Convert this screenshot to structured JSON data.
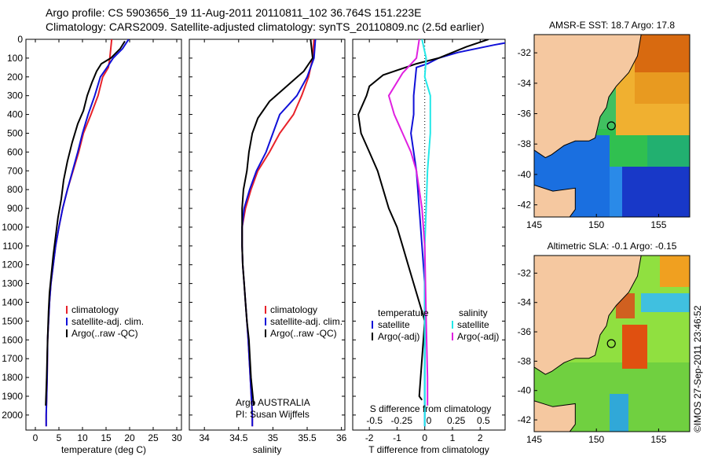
{
  "title_line1": "Argo profile: CS 5903656_19 11-Aug-2011 20110811_102 36.764S 151.223E",
  "title_line2": "Climatology: CARS2009. Satellite-adjusted climatology: synTS_20110809.nc (2.5d earlier)",
  "colors": {
    "climatology": "#e8222a",
    "satellite": "#1010d8",
    "argo": "#000000",
    "salinity_sat": "#22e8e8",
    "salinity_argo": "#e020e0",
    "land": "#f5c8a0",
    "coast": "#000000"
  },
  "chart_data": [
    {
      "type": "line",
      "panel": "temperature",
      "xlabel": "temperature (deg C)",
      "x_ticks": [
        "0",
        "5",
        "10",
        "15",
        "20",
        "25",
        "30"
      ],
      "xlim": [
        -2,
        31
      ],
      "ylim": [
        2080,
        0
      ],
      "y_ticks": [
        "0",
        "100",
        "200",
        "300",
        "400",
        "500",
        "600",
        "700",
        "800",
        "900",
        "1000",
        "1100",
        "1200",
        "1300",
        "1400",
        "1500",
        "1600",
        "1700",
        "1800",
        "1900",
        "2000"
      ],
      "legend": [
        "climatology",
        "satellite-adj. clim.",
        "Argo(..raw -QC)"
      ],
      "series": [
        {
          "name": "climatology",
          "color_key": "climatology",
          "points": [
            [
              16.2,
              0
            ],
            [
              16.0,
              50
            ],
            [
              15.8,
              100
            ],
            [
              15.5,
              150
            ],
            [
              14.3,
              200
            ],
            [
              13.3,
              300
            ],
            [
              11.8,
              400
            ],
            [
              10.2,
              500
            ],
            [
              9.2,
              600
            ],
            [
              8.0,
              700
            ],
            [
              6.8,
              800
            ],
            [
              5.8,
              900
            ],
            [
              5.0,
              1000
            ],
            [
              4.3,
              1100
            ],
            [
              3.8,
              1200
            ],
            [
              3.3,
              1300
            ],
            [
              3.0,
              1400
            ],
            [
              2.8,
              1500
            ],
            [
              2.6,
              1600
            ],
            [
              2.5,
              1800
            ],
            [
              2.3,
              2000
            ],
            [
              2.3,
              2060
            ]
          ]
        },
        {
          "name": "satellite-adj. clim.",
          "color_key": "satellite",
          "points": [
            [
              19.8,
              0
            ],
            [
              18.5,
              50
            ],
            [
              16.5,
              100
            ],
            [
              15.2,
              150
            ],
            [
              13.8,
              200
            ],
            [
              12.6,
              300
            ],
            [
              11.2,
              400
            ],
            [
              10.0,
              500
            ],
            [
              9.0,
              600
            ],
            [
              7.9,
              700
            ],
            [
              6.8,
              800
            ],
            [
              5.8,
              900
            ],
            [
              5.0,
              1000
            ],
            [
              4.3,
              1100
            ],
            [
              3.8,
              1200
            ],
            [
              3.3,
              1300
            ],
            [
              3.0,
              1400
            ],
            [
              2.8,
              1500
            ],
            [
              2.6,
              1600
            ],
            [
              2.5,
              1800
            ],
            [
              2.3,
              2000
            ],
            [
              2.3,
              2060
            ]
          ]
        },
        {
          "name": "Argo(..raw -QC)",
          "color_key": "argo",
          "points": [
            [
              19.0,
              10
            ],
            [
              18.0,
              50
            ],
            [
              16.0,
              100
            ],
            [
              14.0,
              130
            ],
            [
              13.0,
              170
            ],
            [
              12.0,
              230
            ],
            [
              11.0,
              300
            ],
            [
              10.2,
              380
            ],
            [
              9.0,
              450
            ],
            [
              7.8,
              550
            ],
            [
              6.8,
              650
            ],
            [
              6.0,
              750
            ],
            [
              5.5,
              850
            ],
            [
              4.8,
              950
            ],
            [
              4.3,
              1050
            ],
            [
              3.8,
              1150
            ],
            [
              3.4,
              1250
            ],
            [
              3.0,
              1350
            ],
            [
              2.8,
              1450
            ],
            [
              2.6,
              1600
            ],
            [
              2.4,
              1800
            ],
            [
              2.2,
              1950
            ]
          ]
        }
      ]
    },
    {
      "type": "line",
      "panel": "salinity",
      "xlabel": "salinity",
      "x_ticks": [
        "34",
        "34.5",
        "35",
        "35.5",
        "36"
      ],
      "xlim": [
        33.78,
        36.05
      ],
      "ylim": [
        2080,
        0
      ],
      "legend": [
        "climatology",
        "satellite-adj. clim.",
        "Argo(..raw -QC)"
      ],
      "annotation": [
        "Argo AUSTRALIA",
        "PI: Susan Wijffels"
      ],
      "series": [
        {
          "name": "climatology",
          "color_key": "climatology",
          "points": [
            [
              35.6,
              0
            ],
            [
              35.58,
              100
            ],
            [
              35.52,
              200
            ],
            [
              35.42,
              300
            ],
            [
              35.3,
              400
            ],
            [
              35.1,
              500
            ],
            [
              34.95,
              600
            ],
            [
              34.78,
              700
            ],
            [
              34.68,
              800
            ],
            [
              34.6,
              900
            ],
            [
              34.55,
              1000
            ],
            [
              34.55,
              1100
            ],
            [
              34.56,
              1200
            ],
            [
              34.58,
              1300
            ],
            [
              34.6,
              1400
            ],
            [
              34.62,
              1500
            ],
            [
              34.64,
              1600
            ],
            [
              34.67,
              1800
            ],
            [
              34.7,
              2000
            ],
            [
              34.7,
              2060
            ]
          ]
        },
        {
          "name": "satellite-adj. clim.",
          "color_key": "satellite",
          "points": [
            [
              35.62,
              0
            ],
            [
              35.6,
              100
            ],
            [
              35.5,
              200
            ],
            [
              35.35,
              300
            ],
            [
              35.1,
              400
            ],
            [
              35.0,
              500
            ],
            [
              34.9,
              600
            ],
            [
              34.76,
              700
            ],
            [
              34.66,
              800
            ],
            [
              34.58,
              900
            ],
            [
              34.55,
              1000
            ],
            [
              34.55,
              1100
            ],
            [
              34.56,
              1200
            ],
            [
              34.58,
              1300
            ],
            [
              34.6,
              1400
            ],
            [
              34.62,
              1500
            ],
            [
              34.64,
              1600
            ],
            [
              34.67,
              1800
            ],
            [
              34.7,
              2000
            ],
            [
              34.7,
              2060
            ]
          ]
        },
        {
          "name": "Argo(..raw -QC)",
          "color_key": "argo",
          "points": [
            [
              35.55,
              0
            ],
            [
              35.58,
              100
            ],
            [
              35.45,
              170
            ],
            [
              35.2,
              250
            ],
            [
              34.95,
              330
            ],
            [
              34.78,
              420
            ],
            [
              34.7,
              500
            ],
            [
              34.65,
              600
            ],
            [
              34.62,
              700
            ],
            [
              34.57,
              800
            ],
            [
              34.55,
              900
            ],
            [
              34.55,
              1000
            ],
            [
              34.55,
              1100
            ],
            [
              34.56,
              1200
            ],
            [
              34.58,
              1300
            ],
            [
              34.6,
              1400
            ],
            [
              34.62,
              1500
            ],
            [
              34.65,
              1600
            ],
            [
              34.68,
              1800
            ],
            [
              34.72,
              1950
            ]
          ]
        }
      ]
    },
    {
      "type": "line",
      "panel": "differences",
      "xlabel": "T difference from climatology",
      "xlabel_top": "S difference from climatology",
      "x_ticks": [
        "-2",
        "-1",
        "0",
        "1",
        "2"
      ],
      "x_ticks_top": [
        "-0.5",
        "-0.25",
        "0",
        "0.25",
        "0.5"
      ],
      "xlim": [
        -2.6,
        2.9
      ],
      "ylim": [
        2080,
        0
      ],
      "legend_temperature": [
        "temperature",
        "satellite",
        "Argo(-adj)"
      ],
      "legend_salinity": [
        "salinity",
        "satellite",
        "Argo(-adj)"
      ],
      "series": [
        {
          "name": "temperature satellite",
          "color_key": "satellite",
          "points": [
            [
              3.6,
              0
            ],
            [
              2.5,
              30
            ],
            [
              1.2,
              70
            ],
            [
              0.5,
              100
            ],
            [
              0.1,
              130
            ],
            [
              -0.3,
              150
            ],
            [
              -0.4,
              300
            ],
            [
              -0.4,
              400
            ],
            [
              -0.5,
              500
            ],
            [
              -0.3,
              700
            ],
            [
              -0.2,
              900
            ],
            [
              -0.1,
              1100
            ],
            [
              0.0,
              1300
            ],
            [
              0.0,
              1500
            ],
            [
              0.0,
              2060
            ]
          ]
        },
        {
          "name": "temperature Argo(-adj)",
          "color_key": "argo",
          "points": [
            [
              2.3,
              0
            ],
            [
              1.5,
              40
            ],
            [
              0.5,
              100
            ],
            [
              -0.3,
              130
            ],
            [
              -1.5,
              190
            ],
            [
              -2.0,
              250
            ],
            [
              -2.1,
              300
            ],
            [
              -2.4,
              400
            ],
            [
              -2.3,
              500
            ],
            [
              -2.0,
              600
            ],
            [
              -1.7,
              700
            ],
            [
              -1.5,
              800
            ],
            [
              -1.3,
              900
            ],
            [
              -1.0,
              1000
            ],
            [
              -0.8,
              1100
            ],
            [
              -0.6,
              1200
            ],
            [
              -0.4,
              1300
            ],
            [
              -0.2,
              1400
            ],
            [
              0.0,
              1500
            ],
            [
              -0.1,
              1700
            ],
            [
              -0.2,
              1900
            ],
            [
              -0.1,
              1920
            ]
          ]
        },
        {
          "name": "salinity satellite",
          "color_key": "salinity_sat",
          "points": [
            [
              -0.1,
              0
            ],
            [
              0.05,
              100
            ],
            [
              0.0,
              200
            ],
            [
              0.2,
              300
            ],
            [
              0.2,
              500
            ],
            [
              0.1,
              700
            ],
            [
              0.05,
              900
            ],
            [
              0.0,
              1100
            ],
            [
              0.0,
              2060
            ]
          ]
        },
        {
          "name": "salinity Argo(-adj)",
          "color_key": "salinity_argo",
          "points": [
            [
              -0.2,
              0
            ],
            [
              -0.3,
              100
            ],
            [
              -0.8,
              180
            ],
            [
              -1.3,
              300
            ],
            [
              -1.1,
              400
            ],
            [
              -0.8,
              500
            ],
            [
              -0.5,
              600
            ],
            [
              -0.3,
              700
            ],
            [
              -0.2,
              800
            ],
            [
              -0.1,
              900
            ],
            [
              0.0,
              1100
            ],
            [
              0.05,
              1500
            ],
            [
              0.1,
              1800
            ],
            [
              0.1,
              1950
            ]
          ]
        }
      ]
    },
    {
      "type": "heatmap",
      "panel": "map-sst",
      "title": "AMSR-E SST: 18.7 Argo: 17.8",
      "x_ticks": [
        "145",
        "150",
        "155"
      ],
      "y_ticks": [
        "-32",
        "-34",
        "-36",
        "-38",
        "-40",
        "-42"
      ],
      "xlim": [
        145,
        157.5
      ],
      "ylim": [
        -42.8,
        -30.8
      ],
      "argo_position": [
        151.2,
        -36.8
      ]
    },
    {
      "type": "heatmap",
      "panel": "map-sla",
      "title": "Altimetric SLA: -0.1 Argo: -0.15",
      "x_ticks": [
        "145",
        "150",
        "155"
      ],
      "y_ticks": [
        "-32",
        "-34",
        "-36",
        "-38",
        "-40",
        "-42"
      ],
      "xlim": [
        145,
        157.5
      ],
      "ylim": [
        -42.8,
        -30.8
      ],
      "argo_position": [
        151.2,
        -36.8
      ]
    }
  ],
  "footer": "©IMOS 27-Sep-2011 23:46:52"
}
